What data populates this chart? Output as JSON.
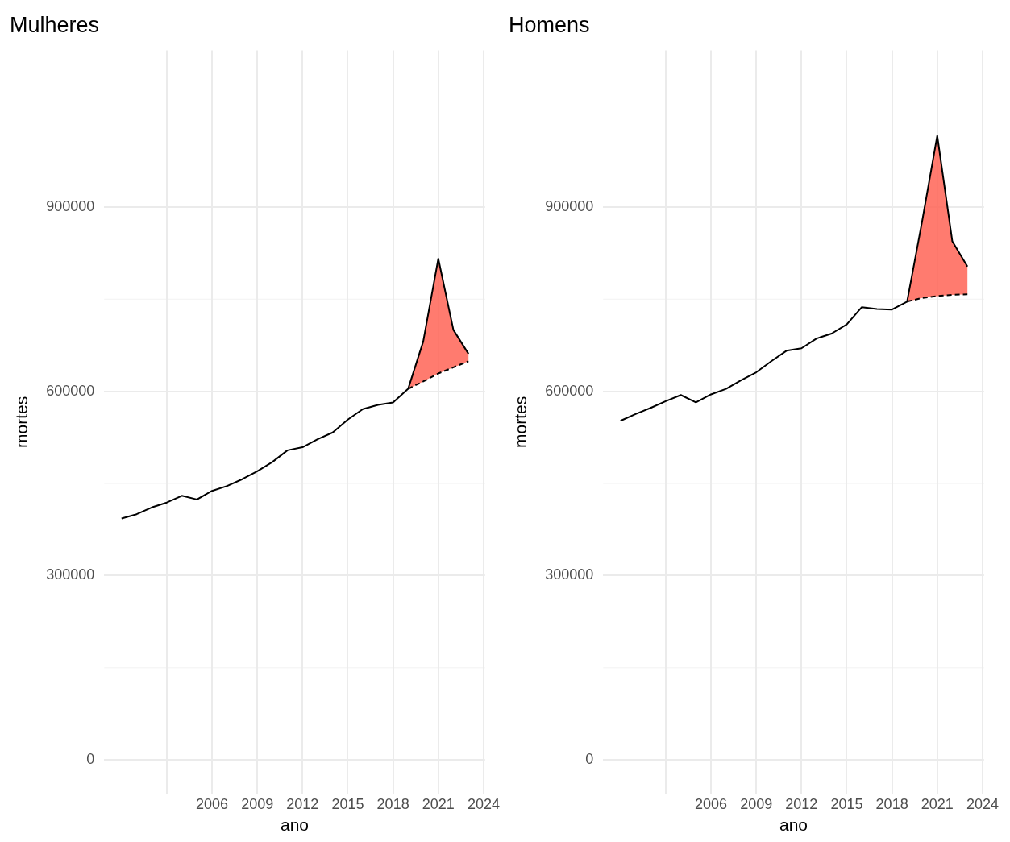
{
  "chart_data": [
    {
      "type": "line",
      "title": "Mulheres",
      "xlabel": "ano",
      "ylabel": "mortes",
      "xlim": [
        1998.85,
        2024.1
      ],
      "ylim": [
        -55000,
        1155000
      ],
      "xticks": [
        {
          "value": 2003,
          "label": null
        },
        2006,
        2009,
        2012,
        2015,
        2018,
        2021,
        2024
      ],
      "yticks": [
        0,
        300000,
        600000,
        900000
      ],
      "grid": true,
      "legend": false,
      "series": [
        {
          "color": "#000000",
          "line_style": "solid",
          "x": [
            2000,
            2001,
            2002,
            2003,
            2004,
            2005,
            2006,
            2007,
            2008,
            2009,
            2010,
            2011,
            2012,
            2013,
            2014,
            2015,
            2016,
            2017,
            2018,
            2019,
            2020,
            2021,
            2022,
            2023
          ],
          "values": [
            393000,
            400000,
            411000,
            419000,
            430000,
            424000,
            438000,
            446000,
            457000,
            470000,
            485000,
            504000,
            509000,
            522000,
            533000,
            554000,
            571000,
            578000,
            582000,
            604000,
            681000,
            816000,
            700000,
            661000
          ]
        },
        {
          "color": "#000000",
          "line_style": "dashed",
          "x": [
            2019,
            2020,
            2021,
            2022,
            2023
          ],
          "values": [
            604000,
            616000,
            629000,
            639000,
            649000
          ],
          "lower": [
            604000,
            616000,
            629000,
            639000,
            649000
          ],
          "upper": [
            604000,
            681000,
            816000,
            700000,
            661000
          ]
        }
      ]
    },
    {
      "type": "line",
      "title": "Homens",
      "xlabel": "ano",
      "ylabel": "mortes",
      "xlim": [
        1998.85,
        2024.1
      ],
      "ylim": [
        -55000,
        1155000
      ],
      "xticks": [
        {
          "value": 2003,
          "label": null
        },
        2006,
        2009,
        2012,
        2015,
        2018,
        2021,
        2024
      ],
      "yticks": [
        0,
        300000,
        600000,
        900000
      ],
      "grid": true,
      "legend": false,
      "series": [
        {
          "color": "#000000",
          "line_style": "solid",
          "x": [
            2000,
            2001,
            2002,
            2003,
            2004,
            2005,
            2006,
            2007,
            2008,
            2009,
            2010,
            2011,
            2012,
            2013,
            2014,
            2015,
            2016,
            2017,
            2018,
            2019,
            2020,
            2021,
            2022,
            2023
          ],
          "values": [
            552000,
            563000,
            573000,
            584000,
            594000,
            582000,
            595000,
            604000,
            618000,
            631000,
            649000,
            666000,
            670000,
            686000,
            694000,
            709000,
            737000,
            734000,
            733000,
            746000,
            877000,
            1016000,
            844000,
            803000
          ]
        },
        {
          "color": "#000000",
          "line_style": "dashed",
          "x": [
            2019,
            2020,
            2021,
            2022,
            2023
          ],
          "values": [
            746000,
            752000,
            755000,
            757000,
            758000
          ],
          "lower": [
            746000,
            752000,
            755000,
            757000,
            758000
          ],
          "upper": [
            746000,
            877000,
            1016000,
            844000,
            803000
          ]
        }
      ]
    }
  ]
}
